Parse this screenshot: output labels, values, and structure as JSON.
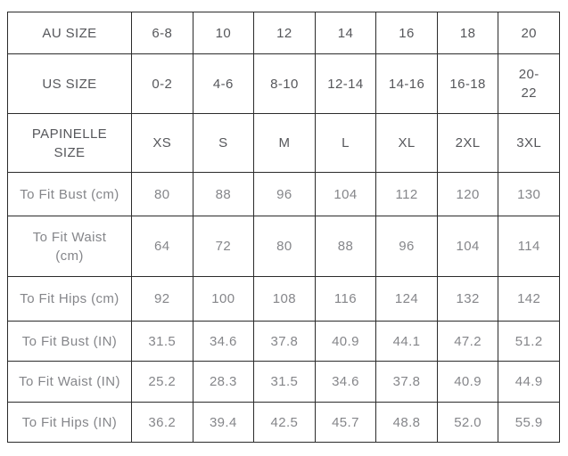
{
  "colors": {
    "background": "#ffffff",
    "grid_border": "#2b2b2b",
    "size_row_text": "#56575b",
    "measurement_row_text": "#85868a"
  },
  "chart_data": {
    "type": "table",
    "layout": "row-headers-left, 7 size columns, grid on, all cells centered",
    "rows": [
      {
        "group": "size",
        "label": "AU SIZE",
        "values": [
          "6-8",
          "10",
          "12",
          "14",
          "16",
          "18",
          "20"
        ]
      },
      {
        "group": "size",
        "label": "US SIZE",
        "values": [
          "0-2",
          "4-6",
          "8-10",
          "12-14",
          "14-16",
          "16-18",
          "20-22"
        ],
        "display_values": {
          "6": "20-\n22"
        }
      },
      {
        "group": "size",
        "label": "PAPINELLE SIZE",
        "display_label": "PAPINELLE\nSIZE",
        "values": [
          "XS",
          "S",
          "M",
          "L",
          "XL",
          "2XL",
          "3XL"
        ]
      },
      {
        "group": "measurement",
        "label": "To Fit Bust (cm)",
        "values": [
          "80",
          "88",
          "96",
          "104",
          "112",
          "120",
          "130"
        ]
      },
      {
        "group": "measurement",
        "label": "To Fit Waist (cm)",
        "display_label": "To Fit Waist\n(cm)",
        "values": [
          "64",
          "72",
          "80",
          "88",
          "96",
          "104",
          "114"
        ]
      },
      {
        "group": "measurement",
        "label": "To Fit Hips (cm)",
        "values": [
          "92",
          "100",
          "108",
          "116",
          "124",
          "132",
          "142"
        ]
      },
      {
        "group": "measurement",
        "label": "To Fit Bust (IN)",
        "values": [
          "31.5",
          "34.6",
          "37.8",
          "40.9",
          "44.1",
          "47.2",
          "51.2"
        ]
      },
      {
        "group": "measurement",
        "label": "To Fit Waist (IN)",
        "values": [
          "25.2",
          "28.3",
          "31.5",
          "34.6",
          "37.8",
          "40.9",
          "44.9"
        ]
      },
      {
        "group": "measurement",
        "label": "To Fit Hips (IN)",
        "values": [
          "36.2",
          "39.4",
          "42.5",
          "45.7",
          "48.8",
          "52.0",
          "55.9"
        ]
      }
    ]
  }
}
